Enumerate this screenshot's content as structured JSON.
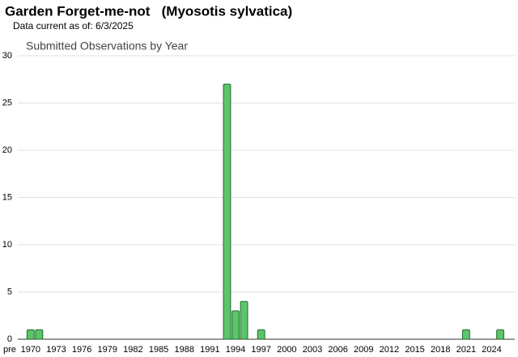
{
  "header": {
    "title": "Garden Forget-me-not   (Myosotis sylvatica)",
    "subtitle": "Data current as of: 6/3/2025"
  },
  "chart_data": {
    "type": "bar",
    "title": "Submitted Observations by Year",
    "categories": [
      "pre",
      "1970",
      null,
      null,
      "1973",
      null,
      null,
      "1976",
      null,
      null,
      "1979",
      null,
      null,
      "1982",
      null,
      null,
      "1985",
      null,
      null,
      "1988",
      null,
      null,
      "1991",
      null,
      null,
      "1994",
      null,
      null,
      "1997",
      null,
      null,
      "2000",
      null,
      null,
      "2003",
      null,
      null,
      "2006",
      null,
      null,
      "2009",
      null,
      null,
      "2012",
      null,
      null,
      "2015",
      null,
      null,
      "2018",
      null,
      null,
      "2021",
      null,
      null,
      "2024",
      null
    ],
    "values": [
      0,
      1,
      1,
      0,
      0,
      0,
      0,
      0,
      0,
      0,
      0,
      0,
      0,
      0,
      0,
      0,
      0,
      0,
      0,
      0,
      0,
      0,
      0,
      0,
      27,
      3,
      4,
      0,
      1,
      0,
      0,
      0,
      0,
      0,
      0,
      0,
      0,
      0,
      0,
      0,
      0,
      0,
      0,
      0,
      0,
      0,
      0,
      0,
      0,
      0,
      0,
      0,
      1,
      0,
      0,
      0,
      1
    ],
    "color": "#5cc46a",
    "ylim": [
      0,
      30
    ],
    "yticks": [
      0,
      5,
      10,
      15,
      20,
      25,
      30
    ],
    "grid": true
  }
}
